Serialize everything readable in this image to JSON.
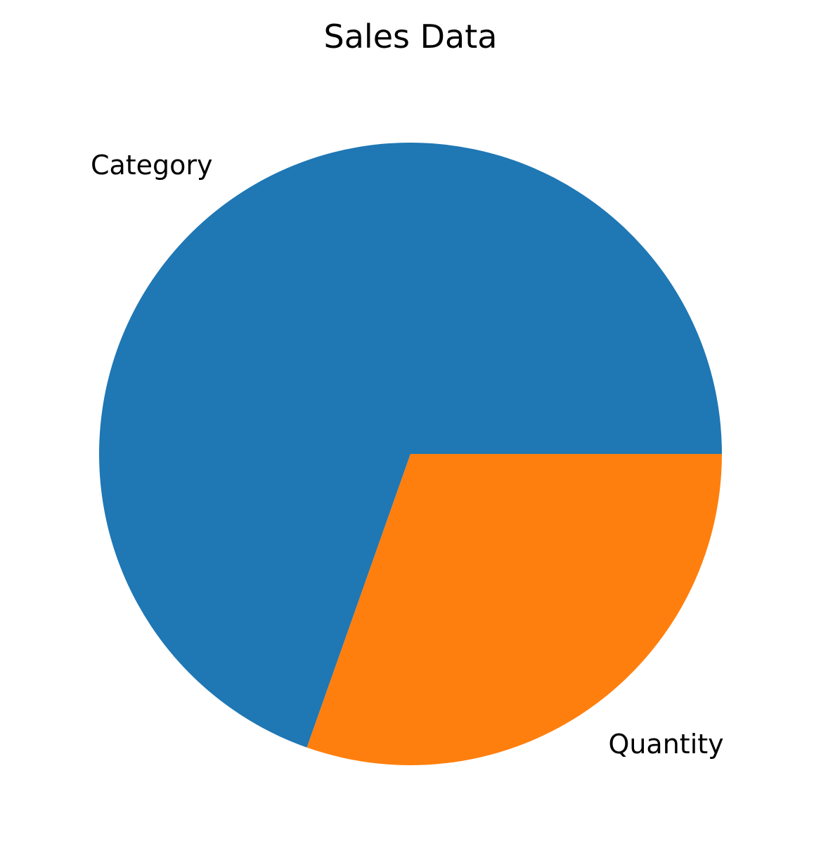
{
  "chart_data": {
    "type": "pie",
    "title": "Sales Data",
    "categories": [
      "Category",
      "Quantity"
    ],
    "values": [
      69.6,
      30.4
    ],
    "colors": [
      "#1f77b4",
      "#ff7f0e"
    ],
    "legend": "none",
    "start_angle_degrees": 0,
    "direction": "counterclockwise"
  }
}
